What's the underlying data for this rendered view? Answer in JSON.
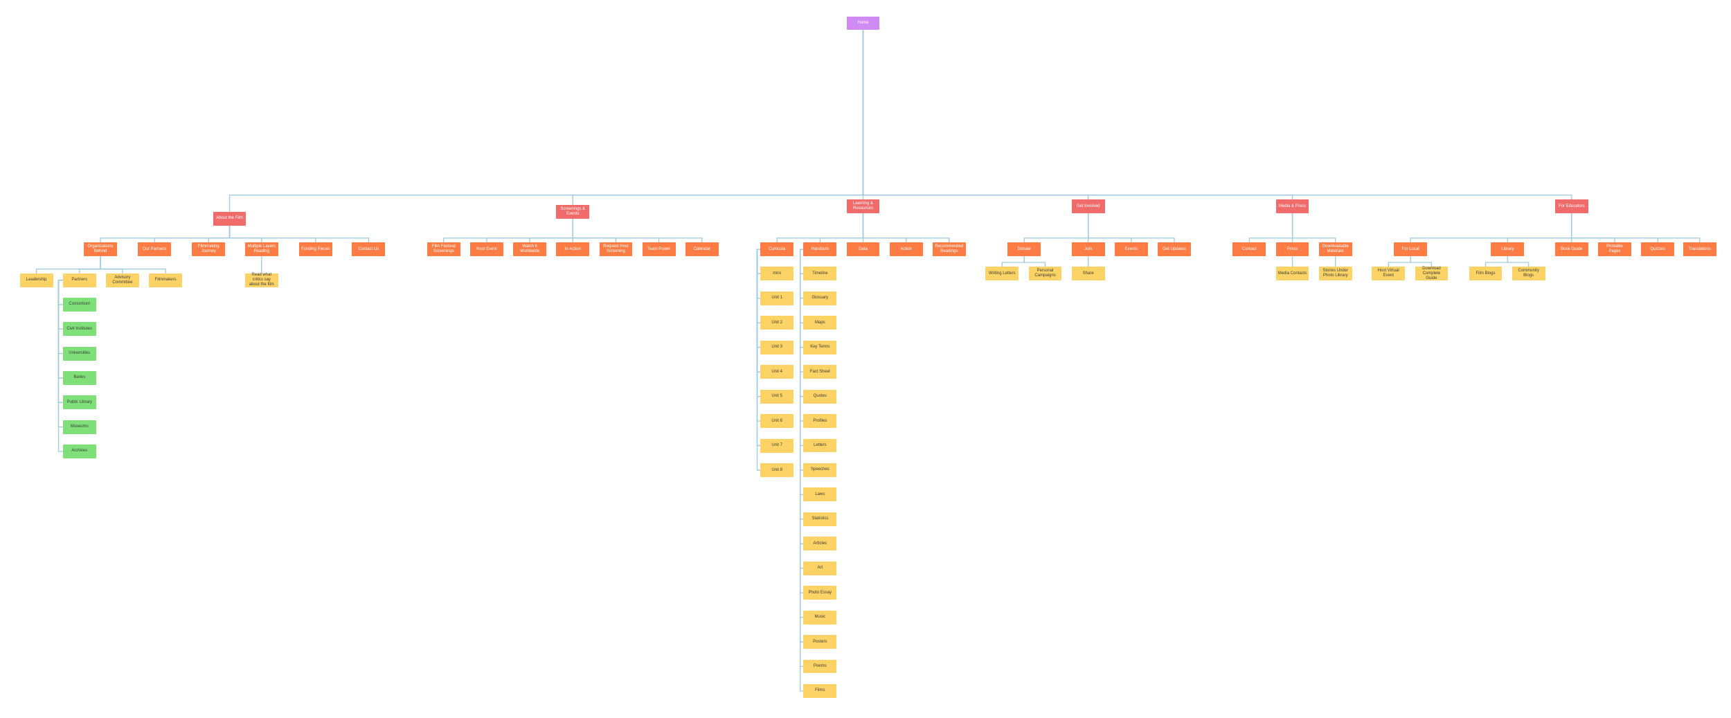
{
  "root": {
    "label": "Home",
    "children": [
      {
        "label": "About the Film",
        "children": [
          {
            "label": "Organizations Behind",
            "children": [
              {
                "label": "Leadership"
              },
              {
                "label": "Partners",
                "children": [
                  {
                    "label": "Consortium"
                  },
                  {
                    "label": "Civil Institutes"
                  },
                  {
                    "label": "Universities"
                  },
                  {
                    "label": "Banks"
                  },
                  {
                    "label": "Public Library"
                  },
                  {
                    "label": "Museums"
                  },
                  {
                    "label": "Archives"
                  }
                ]
              },
              {
                "label": "Advisory Committee"
              },
              {
                "label": "Filmmakers"
              }
            ]
          },
          {
            "label": "Our Partners"
          },
          {
            "label": "Filmmaking Journey"
          },
          {
            "label": "Multiple Layers Reading",
            "children": [
              {
                "label": "Read what critics say about the film"
              }
            ]
          },
          {
            "label": "Funding Pieces"
          },
          {
            "label": "Contact Us"
          }
        ]
      },
      {
        "label": "Screenings & Events",
        "children": [
          {
            "label": "Film Festival Screenings"
          },
          {
            "label": "Host Event"
          },
          {
            "label": "Watch it Worldwide"
          },
          {
            "label": "In Action"
          },
          {
            "label": "Request Host Screening"
          },
          {
            "label": "Team Power"
          },
          {
            "label": "Calendar"
          }
        ]
      },
      {
        "label": "Learning & Resources",
        "children": [
          {
            "label": "Curricula",
            "children": [
              {
                "label": "Intro"
              },
              {
                "label": "Unit 1"
              },
              {
                "label": "Unit 2"
              },
              {
                "label": "Unit 3"
              },
              {
                "label": "Unit 4"
              },
              {
                "label": "Unit 5"
              },
              {
                "label": "Unit 6"
              },
              {
                "label": "Unit 7"
              },
              {
                "label": "Unit 8"
              }
            ]
          },
          {
            "label": "Handouts",
            "children": [
              {
                "label": "Timeline"
              },
              {
                "label": "Glossary"
              },
              {
                "label": "Maps"
              },
              {
                "label": "Key Terms"
              },
              {
                "label": "Fact Sheet"
              },
              {
                "label": "Quotes"
              },
              {
                "label": "Profiles"
              },
              {
                "label": "Letters"
              },
              {
                "label": "Speeches"
              },
              {
                "label": "Laws"
              },
              {
                "label": "Statistics"
              },
              {
                "label": "Articles"
              },
              {
                "label": "Art"
              },
              {
                "label": "Photo Essay"
              },
              {
                "label": "Music"
              },
              {
                "label": "Posters"
              },
              {
                "label": "Poems"
              },
              {
                "label": "Films"
              }
            ]
          },
          {
            "label": "Data"
          },
          {
            "label": "Action"
          },
          {
            "label": "Recommended Readings"
          }
        ]
      },
      {
        "label": "Get Involved",
        "children": [
          {
            "label": "Donate",
            "children": [
              {
                "label": "Writing Letters"
              },
              {
                "label": "Personal Campaigns"
              }
            ]
          },
          {
            "label": "Join",
            "children": [
              {
                "label": "Share"
              }
            ]
          },
          {
            "label": "Events"
          },
          {
            "label": "Get Updates"
          }
        ]
      },
      {
        "label": "Media & Press",
        "children": [
          {
            "label": "Contact"
          },
          {
            "label": "Press",
            "children": [
              {
                "label": "Media Contacts"
              }
            ]
          },
          {
            "label": "Downloadable Materials",
            "children": [
              {
                "label": "Stories Under Photo Library"
              }
            ]
          }
        ]
      },
      {
        "label": "For Educators",
        "children": [
          {
            "label": "For Local",
            "children": [
              {
                "label": "Host Virtual Event"
              },
              {
                "label": "Download Complete Guide"
              }
            ]
          },
          {
            "label": "Library",
            "children": [
              {
                "label": "Film Blogs"
              },
              {
                "label": "Community Blogs"
              }
            ]
          },
          {
            "label": "Book Guide"
          },
          {
            "label": "Printable Pages"
          },
          {
            "label": "Quizzes"
          },
          {
            "label": "Translations"
          }
        ]
      }
    ]
  }
}
